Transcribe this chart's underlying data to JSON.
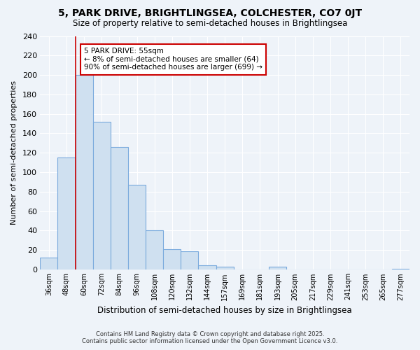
{
  "title": "5, PARK DRIVE, BRIGHTLINGSEA, COLCHESTER, CO7 0JT",
  "subtitle": "Size of property relative to semi-detached houses in Brightlingsea",
  "xlabel": "Distribution of semi-detached houses by size in Brightlingsea",
  "ylabel": "Number of semi-detached properties",
  "categories": [
    "36sqm",
    "48sqm",
    "60sqm",
    "72sqm",
    "84sqm",
    "96sqm",
    "108sqm",
    "120sqm",
    "132sqm",
    "144sqm",
    "157sqm",
    "169sqm",
    "181sqm",
    "193sqm",
    "205sqm",
    "217sqm",
    "229sqm",
    "241sqm",
    "253sqm",
    "265sqm",
    "277sqm"
  ],
  "values": [
    12,
    115,
    200,
    152,
    126,
    87,
    40,
    21,
    19,
    4,
    3,
    0,
    0,
    3,
    0,
    0,
    0,
    0,
    0,
    0,
    1
  ],
  "bar_color": "#cfe0f0",
  "bar_edge_color": "#7aaadd",
  "background_color": "#eef3f9",
  "grid_color": "#ffffff",
  "vline_color": "#cc0000",
  "vline_x": 1.5,
  "annotation_title": "5 PARK DRIVE: 55sqm",
  "annotation_line1": "← 8% of semi-detached houses are smaller (64)",
  "annotation_line2": "90% of semi-detached houses are larger (699) →",
  "footer_line1": "Contains HM Land Registry data © Crown copyright and database right 2025.",
  "footer_line2": "Contains public sector information licensed under the Open Government Licence v3.0.",
  "ylim": [
    0,
    240
  ],
  "yticks": [
    0,
    20,
    40,
    60,
    80,
    100,
    120,
    140,
    160,
    180,
    200,
    220,
    240
  ]
}
